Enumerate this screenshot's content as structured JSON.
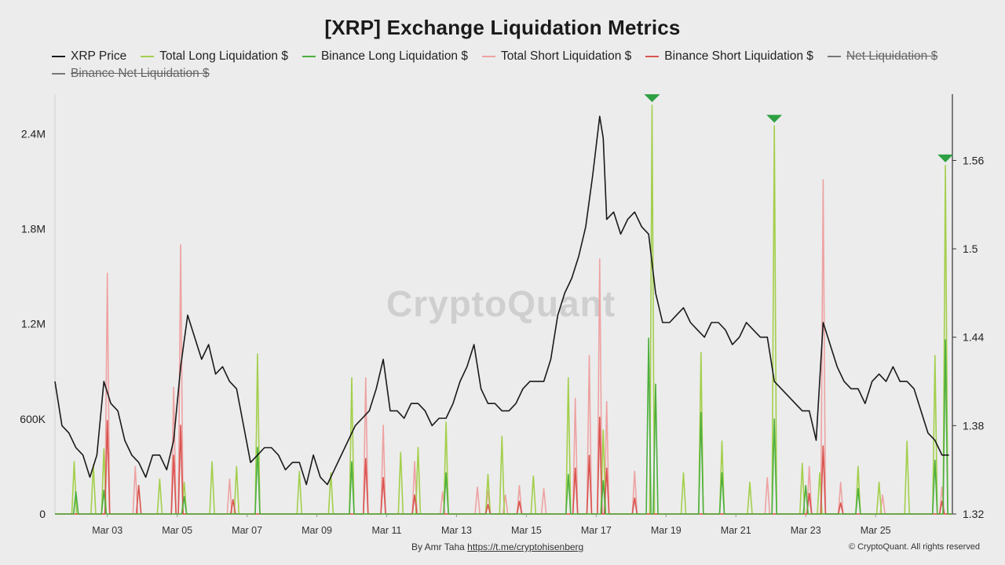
{
  "page": {
    "background": "#ececec"
  },
  "chart_data": {
    "type": "line",
    "title": "[XRP] Exchange Liquidation Metrics",
    "watermark": "CryptoQuant",
    "legend": [
      {
        "name": "XRP Price",
        "color": "#1a1a1a",
        "hidden": false
      },
      {
        "name": "Total Long Liquidation $",
        "color": "#a3cf4b",
        "hidden": false
      },
      {
        "name": "Binance Long Liquidation $",
        "color": "#4caf3e",
        "hidden": false
      },
      {
        "name": "Total Short Liquidation $",
        "color": "#eea2a2",
        "hidden": false
      },
      {
        "name": "Binance Short Liquidation $",
        "color": "#d9534f",
        "hidden": false
      },
      {
        "name": "Net Liquidation $",
        "color": "#777777",
        "hidden": true
      },
      {
        "name": "Binance Net Liquidation $",
        "color": "#777777",
        "hidden": true
      }
    ],
    "x_ticks": [
      "Mar 03",
      "Mar 05",
      "Mar 07",
      "Mar 09",
      "Mar 11",
      "Mar 13",
      "Mar 15",
      "Mar 17",
      "Mar 19",
      "Mar 21",
      "Mar 23",
      "Mar 25"
    ],
    "x_range": [
      1.5,
      27.2
    ],
    "y_left": {
      "ticks": [
        "0",
        "600K",
        "1.2M",
        "1.8M",
        "2.4M"
      ],
      "tick_values": [
        0,
        600000,
        1200000,
        1800000,
        2400000
      ],
      "range": [
        0,
        2650000
      ]
    },
    "y_right": {
      "ticks": [
        "1.32",
        "1.38",
        "1.44",
        "1.5",
        "1.56"
      ],
      "tick_values": [
        1.32,
        1.38,
        1.44,
        1.5,
        1.56
      ],
      "range": [
        1.32,
        1.605
      ]
    },
    "series": [
      {
        "name": "XRP Price",
        "axis": "right",
        "points": [
          [
            1.5,
            1.41
          ],
          [
            1.7,
            1.38
          ],
          [
            1.9,
            1.375
          ],
          [
            2.1,
            1.365
          ],
          [
            2.3,
            1.36
          ],
          [
            2.5,
            1.345
          ],
          [
            2.7,
            1.36
          ],
          [
            2.9,
            1.41
          ],
          [
            3.1,
            1.395
          ],
          [
            3.3,
            1.39
          ],
          [
            3.5,
            1.37
          ],
          [
            3.7,
            1.36
          ],
          [
            3.9,
            1.355
          ],
          [
            4.1,
            1.345
          ],
          [
            4.3,
            1.36
          ],
          [
            4.5,
            1.36
          ],
          [
            4.7,
            1.35
          ],
          [
            4.9,
            1.37
          ],
          [
            5.1,
            1.42
          ],
          [
            5.3,
            1.455
          ],
          [
            5.5,
            1.44
          ],
          [
            5.7,
            1.425
          ],
          [
            5.9,
            1.435
          ],
          [
            6.1,
            1.415
          ],
          [
            6.3,
            1.42
          ],
          [
            6.5,
            1.41
          ],
          [
            6.7,
            1.405
          ],
          [
            6.9,
            1.38
          ],
          [
            7.1,
            1.355
          ],
          [
            7.3,
            1.36
          ],
          [
            7.5,
            1.365
          ],
          [
            7.7,
            1.365
          ],
          [
            7.9,
            1.36
          ],
          [
            8.1,
            1.35
          ],
          [
            8.3,
            1.355
          ],
          [
            8.5,
            1.355
          ],
          [
            8.7,
            1.34
          ],
          [
            8.9,
            1.36
          ],
          [
            9.1,
            1.345
          ],
          [
            9.3,
            1.34
          ],
          [
            9.5,
            1.35
          ],
          [
            9.7,
            1.36
          ],
          [
            9.9,
            1.37
          ],
          [
            10.1,
            1.38
          ],
          [
            10.3,
            1.385
          ],
          [
            10.5,
            1.39
          ],
          [
            10.7,
            1.405
          ],
          [
            10.9,
            1.425
          ],
          [
            11.1,
            1.39
          ],
          [
            11.3,
            1.39
          ],
          [
            11.5,
            1.385
          ],
          [
            11.7,
            1.395
          ],
          [
            11.9,
            1.395
          ],
          [
            12.1,
            1.39
          ],
          [
            12.3,
            1.38
          ],
          [
            12.5,
            1.385
          ],
          [
            12.7,
            1.385
          ],
          [
            12.9,
            1.395
          ],
          [
            13.1,
            1.41
          ],
          [
            13.3,
            1.42
          ],
          [
            13.5,
            1.435
          ],
          [
            13.7,
            1.405
          ],
          [
            13.9,
            1.395
          ],
          [
            14.1,
            1.395
          ],
          [
            14.3,
            1.39
          ],
          [
            14.5,
            1.39
          ],
          [
            14.7,
            1.395
          ],
          [
            14.9,
            1.405
          ],
          [
            15.1,
            1.41
          ],
          [
            15.3,
            1.41
          ],
          [
            15.5,
            1.41
          ],
          [
            15.7,
            1.425
          ],
          [
            15.9,
            1.455
          ],
          [
            16.1,
            1.47
          ],
          [
            16.3,
            1.48
          ],
          [
            16.5,
            1.495
          ],
          [
            16.7,
            1.515
          ],
          [
            16.9,
            1.55
          ],
          [
            17.1,
            1.59
          ],
          [
            17.2,
            1.575
          ],
          [
            17.3,
            1.52
          ],
          [
            17.5,
            1.525
          ],
          [
            17.7,
            1.51
          ],
          [
            17.9,
            1.52
          ],
          [
            18.1,
            1.525
          ],
          [
            18.3,
            1.515
          ],
          [
            18.5,
            1.51
          ],
          [
            18.7,
            1.47
          ],
          [
            18.9,
            1.45
          ],
          [
            19.1,
            1.45
          ],
          [
            19.3,
            1.455
          ],
          [
            19.5,
            1.46
          ],
          [
            19.7,
            1.45
          ],
          [
            19.9,
            1.445
          ],
          [
            20.1,
            1.44
          ],
          [
            20.3,
            1.45
          ],
          [
            20.5,
            1.45
          ],
          [
            20.7,
            1.445
          ],
          [
            20.9,
            1.435
          ],
          [
            21.1,
            1.44
          ],
          [
            21.3,
            1.45
          ],
          [
            21.5,
            1.445
          ],
          [
            21.7,
            1.44
          ],
          [
            21.9,
            1.44
          ],
          [
            22.1,
            1.41
          ],
          [
            22.3,
            1.405
          ],
          [
            22.5,
            1.4
          ],
          [
            22.7,
            1.395
          ],
          [
            22.9,
            1.39
          ],
          [
            23.1,
            1.39
          ],
          [
            23.3,
            1.37
          ],
          [
            23.5,
            1.45
          ],
          [
            23.7,
            1.435
          ],
          [
            23.9,
            1.42
          ],
          [
            24.1,
            1.41
          ],
          [
            24.3,
            1.405
          ],
          [
            24.5,
            1.405
          ],
          [
            24.7,
            1.395
          ],
          [
            24.9,
            1.41
          ],
          [
            25.1,
            1.415
          ],
          [
            25.3,
            1.41
          ],
          [
            25.5,
            1.42
          ],
          [
            25.7,
            1.41
          ],
          [
            25.9,
            1.41
          ],
          [
            26.1,
            1.405
          ],
          [
            26.3,
            1.39
          ],
          [
            26.5,
            1.375
          ],
          [
            26.7,
            1.37
          ],
          [
            26.9,
            1.36
          ],
          [
            27.1,
            1.36
          ]
        ]
      },
      {
        "name": "Total Long Liquidation $",
        "axis": "left",
        "points": [
          [
            2.05,
            330000
          ],
          [
            2.6,
            310000
          ],
          [
            2.9,
            410000
          ],
          [
            4.5,
            220000
          ],
          [
            5.2,
            200000
          ],
          [
            6.0,
            330000
          ],
          [
            6.7,
            300000
          ],
          [
            7.3,
            1010000
          ],
          [
            8.5,
            270000
          ],
          [
            9.4,
            260000
          ],
          [
            10.0,
            860000
          ],
          [
            11.4,
            390000
          ],
          [
            11.9,
            420000
          ],
          [
            12.7,
            580000
          ],
          [
            13.9,
            250000
          ],
          [
            14.3,
            490000
          ],
          [
            15.2,
            240000
          ],
          [
            16.2,
            860000
          ],
          [
            17.2,
            530000
          ],
          [
            18.6,
            2580000
          ],
          [
            19.5,
            260000
          ],
          [
            20.0,
            1020000
          ],
          [
            20.6,
            460000
          ],
          [
            21.4,
            200000
          ],
          [
            22.1,
            2450000
          ],
          [
            22.9,
            320000
          ],
          [
            23.4,
            260000
          ],
          [
            24.5,
            300000
          ],
          [
            25.1,
            200000
          ],
          [
            25.9,
            460000
          ],
          [
            26.7,
            1000000
          ],
          [
            27.0,
            2200000
          ]
        ]
      },
      {
        "name": "Binance Long Liquidation $",
        "axis": "left",
        "points": [
          [
            2.1,
            140000
          ],
          [
            2.9,
            150000
          ],
          [
            5.2,
            110000
          ],
          [
            7.3,
            420000
          ],
          [
            10.0,
            330000
          ],
          [
            12.7,
            260000
          ],
          [
            16.2,
            250000
          ],
          [
            17.2,
            210000
          ],
          [
            18.5,
            1110000
          ],
          [
            18.7,
            820000
          ],
          [
            20.0,
            640000
          ],
          [
            20.6,
            260000
          ],
          [
            22.1,
            600000
          ],
          [
            23.0,
            180000
          ],
          [
            24.5,
            160000
          ],
          [
            26.7,
            340000
          ],
          [
            27.0,
            1100000
          ]
        ]
      },
      {
        "name": "Total Short Liquidation $",
        "axis": "left",
        "points": [
          [
            3.0,
            1520000
          ],
          [
            3.8,
            300000
          ],
          [
            4.9,
            800000
          ],
          [
            5.1,
            1700000
          ],
          [
            6.5,
            220000
          ],
          [
            10.4,
            860000
          ],
          [
            10.9,
            560000
          ],
          [
            11.8,
            330000
          ],
          [
            12.6,
            140000
          ],
          [
            13.6,
            170000
          ],
          [
            13.9,
            150000
          ],
          [
            14.4,
            120000
          ],
          [
            14.8,
            180000
          ],
          [
            15.5,
            160000
          ],
          [
            16.4,
            730000
          ],
          [
            16.8,
            1000000
          ],
          [
            17.1,
            1610000
          ],
          [
            17.3,
            710000
          ],
          [
            18.1,
            270000
          ],
          [
            21.9,
            230000
          ],
          [
            23.1,
            300000
          ],
          [
            23.5,
            2110000
          ],
          [
            24.0,
            200000
          ],
          [
            25.2,
            120000
          ],
          [
            26.9,
            170000
          ]
        ]
      },
      {
        "name": "Binance Short Liquidation $",
        "axis": "left",
        "points": [
          [
            3.0,
            590000
          ],
          [
            3.9,
            180000
          ],
          [
            4.9,
            370000
          ],
          [
            5.1,
            560000
          ],
          [
            6.6,
            90000
          ],
          [
            10.4,
            350000
          ],
          [
            10.9,
            230000
          ],
          [
            11.8,
            120000
          ],
          [
            13.9,
            60000
          ],
          [
            14.8,
            80000
          ],
          [
            16.4,
            290000
          ],
          [
            16.8,
            370000
          ],
          [
            17.1,
            610000
          ],
          [
            17.3,
            290000
          ],
          [
            18.1,
            100000
          ],
          [
            23.1,
            130000
          ],
          [
            23.5,
            430000
          ],
          [
            24.0,
            70000
          ],
          [
            26.9,
            80000
          ]
        ]
      }
    ],
    "markers": [
      {
        "series": "Total Long Liquidation $",
        "x": 18.6,
        "y": 2580000
      },
      {
        "series": "Total Long Liquidation $",
        "x": 22.1,
        "y": 2450000
      },
      {
        "series": "Total Long Liquidation $",
        "x": 27.0,
        "y": 2200000
      }
    ],
    "marker_color": "#2ea043"
  },
  "footer": {
    "by": "By Amr Taha",
    "link": "https://t.me/cryptohisenberg",
    "copyright": "© CryptoQuant. All rights reserved"
  }
}
